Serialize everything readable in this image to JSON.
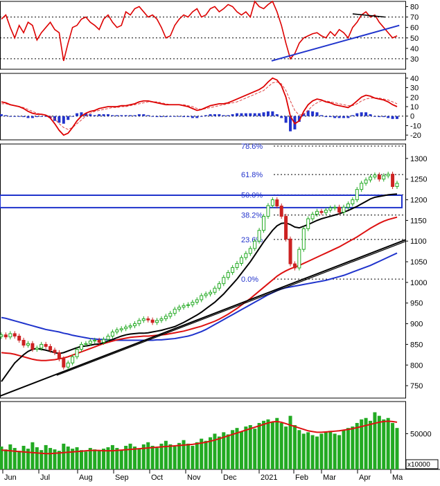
{
  "colors": {
    "rsi": "#dd0000",
    "trend_blue": "#1f33cc",
    "trend_black": "#000000",
    "macd_line": "#dd0000",
    "macd_signal": "#dd4444",
    "hist_pos": "#2233cc",
    "hist_neg": "#2233cc",
    "candle_up": "#22aa22",
    "candle_down": "#cc2222",
    "ma_short": "#000000",
    "ma_mid": "#dd1111",
    "ma_long": "#1f33cc",
    "fib": "#2233cc",
    "volume_bar": "#22aa22",
    "volume_ma": "#dd1111",
    "grid": "#000000"
  },
  "chart_data": [
    {
      "type": "line",
      "panel": "rsi",
      "ylim": [
        20,
        85
      ],
      "yticks": [
        "80",
        "70",
        "60",
        "50",
        "40",
        "30"
      ],
      "reference_levels": [
        70,
        50,
        30
      ],
      "x_labels": [
        "Jun",
        "Jul",
        "Aug",
        "Sep",
        "Oct",
        "Nov",
        "Dec",
        "2021",
        "Feb",
        "Mar",
        "Apr",
        "Ma"
      ],
      "series": [
        {
          "values": [
            68,
            72,
            60,
            50,
            62,
            55,
            65,
            62,
            48,
            55,
            60,
            65,
            58,
            55,
            28,
            45,
            60,
            62,
            68,
            70,
            65,
            62,
            58,
            68,
            72,
            65,
            60,
            62,
            75,
            72,
            78,
            80,
            75,
            70,
            72,
            68,
            60,
            50,
            52,
            62,
            68,
            72,
            70,
            75,
            78,
            70,
            72,
            78,
            80,
            75,
            78,
            82,
            80,
            75,
            72,
            75,
            70,
            85,
            80,
            78,
            82,
            85,
            75,
            62,
            45,
            30,
            35,
            45,
            50,
            52,
            54,
            55,
            52,
            50,
            56,
            52,
            58,
            55,
            50,
            60,
            65,
            72,
            75,
            70,
            72,
            65,
            60,
            55,
            50,
            52
          ]
        }
      ],
      "annotations": {
        "support_trendline": [
          [
            0.67,
            28
          ],
          [
            0.985,
            62
          ]
        ],
        "resistance_trendline": [
          [
            0.87,
            73
          ],
          [
            0.95,
            70
          ]
        ]
      }
    },
    {
      "type": "line",
      "panel": "macd",
      "ylim": [
        -25,
        45
      ],
      "yticks": [
        "40",
        "30",
        "20",
        "10",
        "0",
        "-10",
        "-20"
      ],
      "series": [
        {
          "values": [
            15,
            14,
            12,
            11,
            10,
            8,
            5,
            3,
            2,
            2,
            1,
            -2,
            -8,
            -15,
            -20,
            -18,
            -12,
            -5,
            0,
            3,
            5,
            6,
            8,
            9,
            10,
            10,
            10,
            11,
            11,
            12,
            13,
            15,
            16,
            16,
            15,
            14,
            13,
            12,
            12,
            12,
            12,
            11,
            10,
            8,
            6,
            7,
            9,
            11,
            12,
            13,
            13,
            14,
            16,
            18,
            20,
            22,
            24,
            26,
            28,
            31,
            36,
            40,
            38,
            32,
            20,
            0,
            -8,
            -5,
            5,
            12,
            16,
            18,
            17,
            15,
            14,
            12,
            11,
            10,
            9,
            12,
            16,
            20,
            22,
            21,
            19,
            18,
            17,
            15,
            12,
            10
          ]
        },
        {
          "values": [
            13,
            13,
            12,
            11,
            10,
            9,
            7,
            5,
            3,
            2,
            1,
            0,
            -3,
            -8,
            -12,
            -14,
            -12,
            -8,
            -4,
            0,
            3,
            5,
            6,
            7,
            8,
            9,
            9,
            10,
            10,
            11,
            12,
            13,
            14,
            15,
            15,
            15,
            14,
            13,
            12,
            12,
            12,
            12,
            11,
            10,
            8,
            7,
            8,
            9,
            10,
            11,
            12,
            13,
            14,
            15,
            17,
            19,
            21,
            23,
            25,
            27,
            31,
            35,
            36,
            34,
            27,
            16,
            6,
            1,
            2,
            6,
            11,
            14,
            16,
            16,
            15,
            14,
            13,
            12,
            11,
            11,
            13,
            16,
            18,
            19,
            19,
            19,
            18,
            17,
            15,
            13
          ]
        },
        {
          "values": [
            2,
            1,
            0,
            0,
            0,
            -1,
            -2,
            -2,
            -1,
            0,
            0,
            -2,
            -5,
            -7,
            -8,
            -4,
            0,
            3,
            4,
            3,
            2,
            1,
            2,
            2,
            2,
            1,
            1,
            1,
            1,
            1,
            1,
            2,
            2,
            1,
            0,
            -1,
            -1,
            -1,
            0,
            0,
            0,
            -1,
            -1,
            -2,
            -2,
            0,
            1,
            2,
            2,
            2,
            1,
            1,
            2,
            3,
            3,
            3,
            3,
            3,
            3,
            4,
            5,
            5,
            2,
            -2,
            -7,
            -16,
            -14,
            -6,
            3,
            6,
            5,
            4,
            1,
            -1,
            -1,
            -2,
            -2,
            -2,
            -2,
            1,
            3,
            4,
            4,
            2,
            0,
            -1,
            -1,
            -2,
            -3,
            -3
          ]
        }
      ]
    },
    {
      "type": "candlestick",
      "panel": "price",
      "ylim": [
        720,
        1335
      ],
      "yticks": [
        "1300",
        "1250",
        "1200",
        "1150",
        "1100",
        "1050",
        "1000",
        "950",
        "900",
        "850",
        "800",
        "750"
      ],
      "fib_levels": [
        {
          "label": "78.6%",
          "value": 1330
        },
        {
          "label": "61.8%",
          "value": 1261
        },
        {
          "label": "50.0%",
          "value": 1212
        },
        {
          "label": "38.2%",
          "value": 1163
        },
        {
          "label": "23.6%",
          "value": 1104
        },
        {
          "label": "0.0%",
          "value": 1008
        }
      ],
      "resistance_zone": [
        1181,
        1211
      ],
      "close": [
        873,
        868,
        876,
        870,
        860,
        848,
        852,
        838,
        841,
        850,
        845,
        836,
        830,
        815,
        795,
        805,
        820,
        838,
        850,
        852,
        858,
        860,
        855,
        862,
        870,
        880,
        885,
        888,
        892,
        895,
        900,
        908,
        912,
        909,
        903,
        908,
        912,
        918,
        925,
        935,
        940,
        944,
        946,
        952,
        958,
        968,
        972,
        976,
        986,
        997,
        1012,
        1024,
        1036,
        1046,
        1060,
        1070,
        1082,
        1100,
        1126,
        1160,
        1186,
        1200,
        1185,
        1160,
        1105,
        1045,
        1035,
        1080,
        1130,
        1154,
        1165,
        1172,
        1169,
        1175,
        1180,
        1182,
        1170,
        1182,
        1190,
        1200,
        1225,
        1240,
        1248,
        1255,
        1260,
        1250,
        1258,
        1262,
        1232,
        1240
      ],
      "ma_short": [
        760,
        775,
        790,
        805,
        815,
        825,
        833,
        838,
        840,
        838,
        836,
        833,
        830,
        828,
        830,
        834,
        838,
        842,
        845,
        846,
        848,
        850,
        851,
        854,
        858,
        862,
        866,
        870,
        873,
        875,
        876,
        877,
        877,
        878,
        880,
        882,
        884,
        887,
        890,
        893,
        898,
        903,
        909,
        915,
        921,
        928,
        936,
        944,
        952,
        962,
        972,
        984,
        996,
        1008,
        1022,
        1036,
        1050,
        1066,
        1082,
        1098,
        1112,
        1126,
        1137,
        1143,
        1144,
        1140,
        1134,
        1132,
        1136,
        1140,
        1145,
        1150,
        1154,
        1157,
        1160,
        1163,
        1166,
        1170,
        1174,
        1179,
        1184,
        1190,
        1196,
        1202,
        1206,
        1208,
        1210,
        1212,
        1213,
        1214
      ],
      "ma_mid": [
        830,
        829,
        828,
        826,
        823,
        820,
        817,
        814,
        812,
        811,
        811,
        812,
        813,
        815,
        817,
        820,
        824,
        828,
        832,
        836,
        840,
        844,
        848,
        852,
        855,
        858,
        861,
        863,
        865,
        867,
        868,
        869,
        870,
        870,
        871,
        872,
        873,
        874,
        876,
        878,
        880,
        882,
        885,
        888,
        891,
        894,
        898,
        902,
        906,
        911,
        917,
        923,
        930,
        937,
        945,
        953,
        961,
        970,
        979,
        988,
        997,
        1006,
        1015,
        1022,
        1028,
        1033,
        1037,
        1041,
        1046,
        1051,
        1056,
        1061,
        1066,
        1071,
        1076,
        1081,
        1086,
        1092,
        1098,
        1104,
        1110,
        1117,
        1124,
        1131,
        1137,
        1143,
        1148,
        1152,
        1155,
        1158
      ],
      "ma_long": [
        915,
        913,
        910,
        907,
        904,
        901,
        898,
        895,
        892,
        889,
        886,
        884,
        882,
        880,
        877,
        875,
        872,
        870,
        868,
        866,
        864,
        863,
        862,
        862,
        861,
        861,
        860,
        860,
        860,
        860,
        860,
        860,
        860,
        860,
        860,
        861,
        861,
        862,
        863,
        864,
        866,
        868,
        870,
        873,
        877,
        881,
        886,
        892,
        898,
        904,
        910,
        916,
        922,
        928,
        934,
        940,
        946,
        952,
        958,
        964,
        970,
        975,
        980,
        984,
        987,
        989,
        991,
        993,
        995,
        997,
        999,
        1001,
        1003,
        1005,
        1008,
        1011,
        1014,
        1017,
        1021,
        1025,
        1029,
        1033,
        1037,
        1041,
        1046,
        1051,
        1056,
        1061,
        1066,
        1071
      ],
      "trendlines": {
        "long_support": [
          [
            0.0,
            725
          ],
          [
            1.0,
            1103
          ]
        ],
        "short_support": [
          [
            0.14,
            775
          ],
          [
            1.0,
            1099
          ]
        ]
      }
    },
    {
      "type": "bar",
      "panel": "volume",
      "ylim": [
        0,
        95000
      ],
      "yticks": [
        "50000"
      ],
      "scale_label": "x10000",
      "values": [
        32000,
        28000,
        35000,
        30000,
        26000,
        33000,
        29000,
        38000,
        31000,
        27000,
        34000,
        30000,
        28000,
        26000,
        36000,
        32000,
        29000,
        31000,
        27000,
        25000,
        30000,
        28000,
        26000,
        29000,
        31000,
        34000,
        30000,
        27000,
        33000,
        36000,
        32000,
        29000,
        35000,
        38000,
        33000,
        30000,
        36000,
        40000,
        35000,
        32000,
        37000,
        41000,
        36000,
        33000,
        38000,
        43000,
        40000,
        45000,
        50000,
        46000,
        52000,
        49000,
        55000,
        58000,
        53000,
        60000,
        62000,
        57000,
        65000,
        68000,
        70000,
        66000,
        72000,
        65000,
        60000,
        75000,
        62000,
        55000,
        50000,
        52000,
        48000,
        46000,
        50000,
        52000,
        54000,
        50000,
        48000,
        55000,
        58000,
        60000,
        65000,
        70000,
        72000,
        68000,
        80000,
        75000,
        70000,
        72000,
        65000,
        58000
      ],
      "moving_average": [
        27000,
        26500,
        26000,
        25500,
        25000,
        24500,
        24000,
        23500,
        23000,
        22500,
        22000,
        22000,
        22500,
        23000,
        23500,
        24000,
        24500,
        25000,
        25500,
        26000,
        26500,
        26500,
        26500,
        26000,
        26000,
        26000,
        26500,
        27000,
        27500,
        28000,
        28500,
        29000,
        29500,
        30000,
        30500,
        31000,
        31500,
        32000,
        32500,
        33000,
        33500,
        34000,
        34500,
        35000,
        36000,
        37000,
        38000,
        39500,
        41000,
        43000,
        45000,
        47000,
        49000,
        51000,
        53000,
        55000,
        57000,
        59000,
        61000,
        63000,
        65000,
        66500,
        67000,
        66000,
        64000,
        62000,
        60000,
        58000,
        56000,
        54000,
        53000,
        52000,
        52000,
        52500,
        53000,
        53500,
        54000,
        55000,
        56000,
        57000,
        58500,
        60000,
        61500,
        63000,
        64500,
        66000,
        67000,
        67500,
        67000,
        66000
      ]
    }
  ]
}
